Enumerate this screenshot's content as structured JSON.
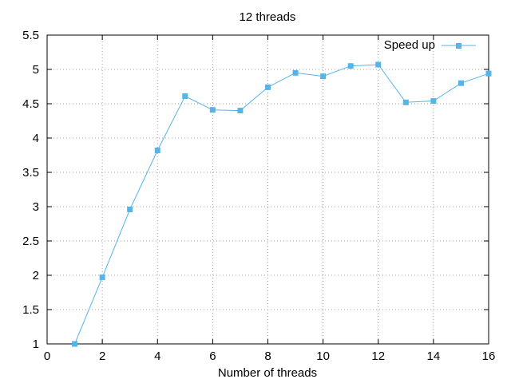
{
  "chart_data": {
    "type": "line",
    "title": "12 threads",
    "xlabel": "Number of threads",
    "ylabel": "",
    "xlim": [
      0,
      16
    ],
    "ylim": [
      1,
      5.5
    ],
    "x_ticks": [
      0,
      2,
      4,
      6,
      8,
      10,
      12,
      14,
      16
    ],
    "y_ticks": [
      1,
      1.5,
      2,
      2.5,
      3,
      3.5,
      4,
      4.5,
      5,
      5.5
    ],
    "x_tick_labels": [
      "0",
      "2",
      "4",
      "6",
      "8",
      "10",
      "12",
      "14",
      "16"
    ],
    "y_tick_labels": [
      "1",
      "1.5",
      "2",
      "2.5",
      "3",
      "3.5",
      "4",
      "4.5",
      "5",
      "5.5"
    ],
    "grid": true,
    "legend_position": "top-right",
    "series": [
      {
        "name": "Speed up",
        "color": "#56b4e9",
        "marker": "square",
        "x": [
          1,
          2,
          3,
          4,
          5,
          6,
          7,
          8,
          9,
          10,
          11,
          12,
          13,
          14,
          15,
          16
        ],
        "values": [
          1.0,
          1.97,
          2.96,
          3.82,
          4.61,
          4.41,
          4.4,
          4.74,
          4.95,
          4.9,
          5.05,
          5.07,
          4.52,
          4.54,
          4.8,
          4.94
        ]
      }
    ]
  }
}
